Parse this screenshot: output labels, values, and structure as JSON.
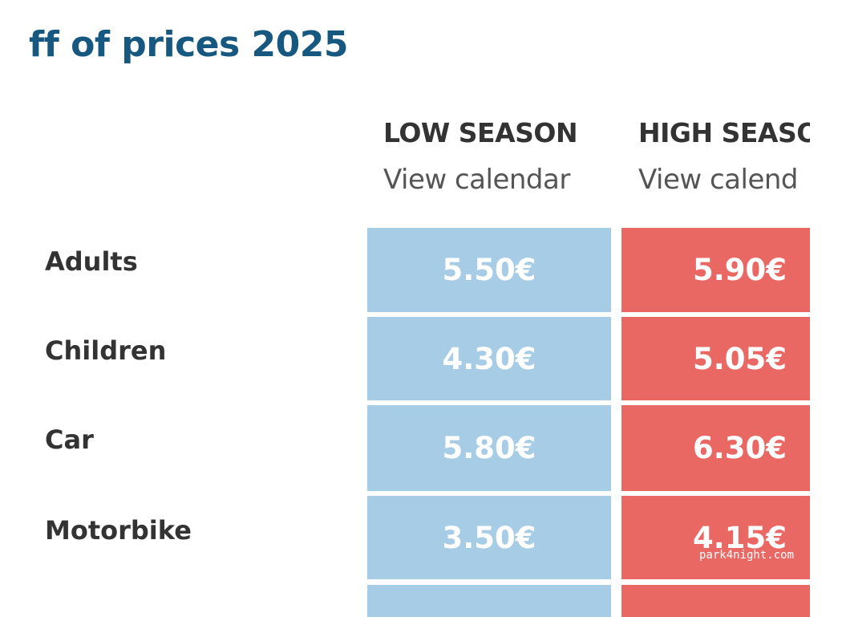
{
  "page": {
    "title": "ff of prices 2025"
  },
  "columns": [
    {
      "season": "LOW SEASON",
      "link": "View calendar",
      "color": "#a7cce6"
    },
    {
      "season": "HIGH SEASO",
      "link": "View calend",
      "color": "#ea6863"
    }
  ],
  "rows": [
    {
      "label": "Adults",
      "low": "5.50€",
      "high": "5.90€"
    },
    {
      "label": "Children",
      "low": "4.30€",
      "high": "5.05€"
    },
    {
      "label": "Car",
      "low": "5.80€",
      "high": "6.30€"
    },
    {
      "label": "Motorbike",
      "low": "3.50€",
      "high": "4.15€"
    },
    {
      "label": "",
      "low": "",
      "high": ""
    }
  ],
  "watermark": "park4night.com"
}
